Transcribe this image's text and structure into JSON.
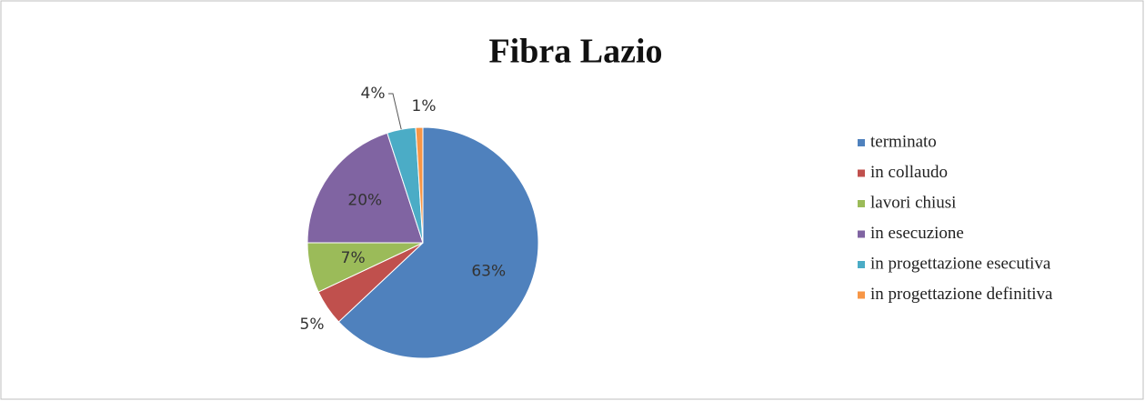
{
  "chart_data": {
    "type": "pie",
    "title": "Fibra Lazio",
    "categories": [
      "terminato",
      "in collaudo",
      "lavori chiusi",
      "in esecuzione",
      "in progettazione esecutiva",
      "in progettazione definitiva"
    ],
    "values": [
      63,
      5,
      7,
      20,
      4,
      1
    ],
    "value_labels": [
      "63%",
      "5%",
      "7%",
      "20%",
      "4%",
      "1%"
    ],
    "colors": [
      "#4f81bd",
      "#c0504d",
      "#9bbb59",
      "#8064a2",
      "#4bacc6",
      "#f79646"
    ],
    "legend": "right"
  }
}
